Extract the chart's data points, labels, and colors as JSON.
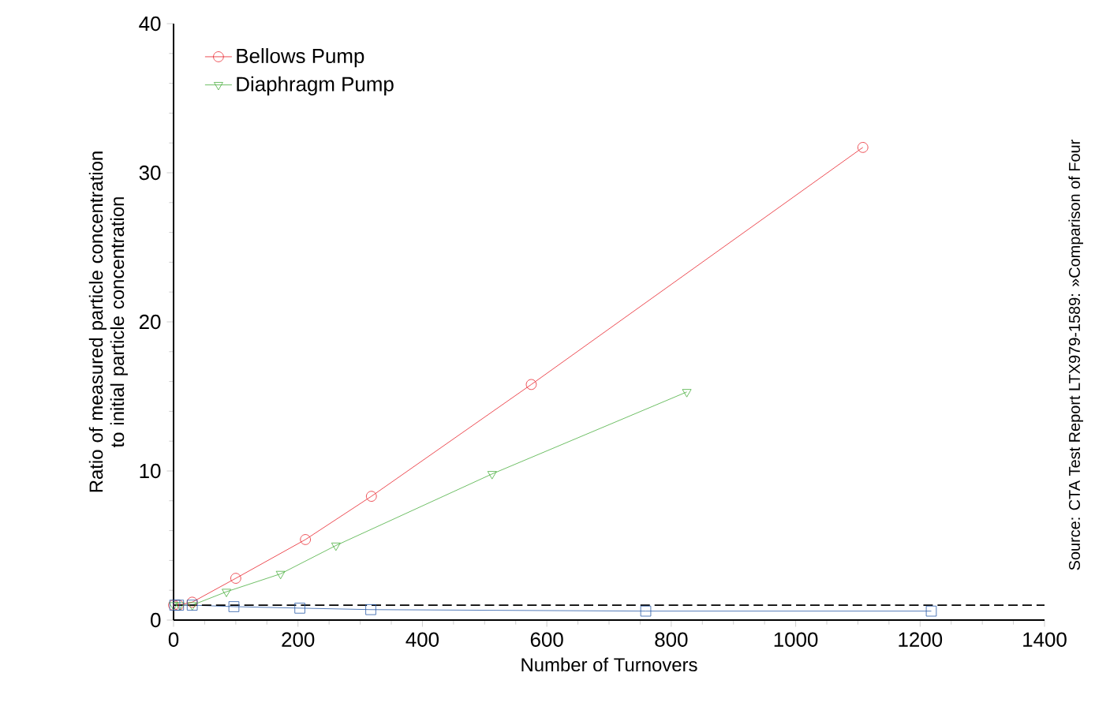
{
  "chart_data": {
    "type": "line",
    "xlabel": "Number of Turnovers",
    "ylabel": "Ratio of measured particle concentration to initial particle concentration",
    "xlim": [
      0,
      1400
    ],
    "xticks": [
      0,
      200,
      400,
      600,
      800,
      1000,
      1200,
      1400
    ],
    "ylim": [
      0,
      40
    ],
    "yticks": [
      0,
      10,
      20,
      30,
      40
    ],
    "legend": "top left",
    "grid": false,
    "series": [
      {
        "name": "Bellows Pump",
        "color": "#e8212a",
        "marker": "circle",
        "x": [
          0,
          8,
          30,
          100,
          212,
          318,
          575,
          1108
        ],
        "values": [
          1.0,
          1.0,
          1.2,
          2.8,
          5.4,
          8.3,
          15.8,
          31.7
        ]
      },
      {
        "name": "Diaphragm Pump",
        "color": "#4aae3f",
        "marker": "triangle",
        "x": [
          0,
          10,
          30,
          85,
          172,
          261,
          512,
          825
        ],
        "values": [
          1.0,
          1.0,
          1.0,
          1.9,
          3.1,
          5.0,
          9.8,
          15.3
        ]
      },
      {
        "color": "#2b5ca8",
        "marker": "square",
        "x": [
          2,
          8,
          30,
          97,
          203,
          317,
          759,
          1218
        ],
        "values": [
          1.0,
          1.0,
          1.0,
          0.9,
          0.8,
          0.7,
          0.6,
          0.6
        ]
      }
    ],
    "ref_lines": [
      {
        "axis": "y",
        "value": 1,
        "color": "#000000",
        "line_style": "dashed"
      }
    ],
    "annotations": [
      "Source: CTA Test Report LTX979-1589: »Comparison of Four"
    ]
  }
}
